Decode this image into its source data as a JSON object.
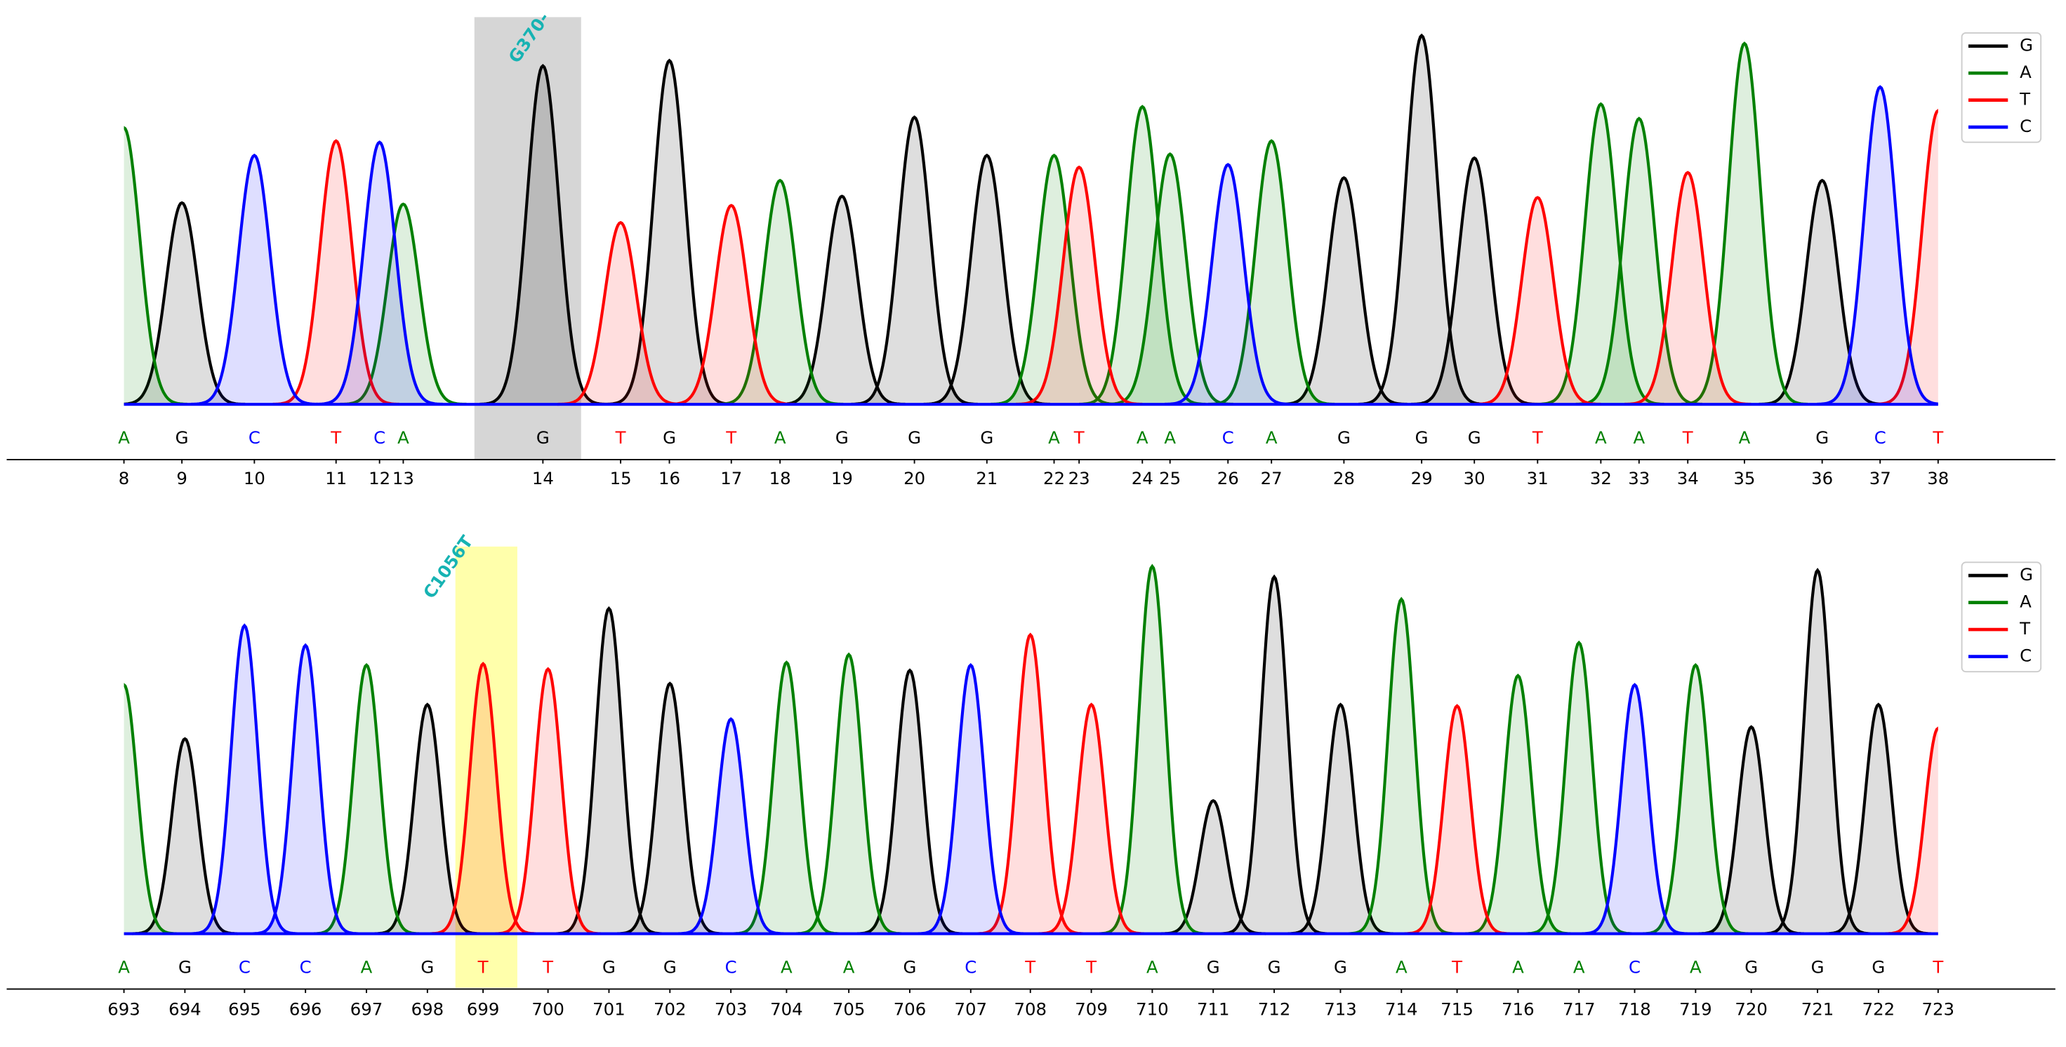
{
  "chart_data": [
    {
      "type": "chromatogram",
      "annotation": "G370-",
      "highlight_position": 14,
      "xlim": [
        94,
        1471
      ],
      "ylim": [
        0,
        300
      ],
      "positions": [
        8,
        9,
        10,
        11,
        12,
        13,
        14,
        15,
        16,
        17,
        18,
        19,
        20,
        21,
        22,
        23,
        24,
        25,
        26,
        27,
        28,
        29,
        30,
        31,
        32,
        33,
        34,
        35,
        36,
        37,
        38
      ],
      "bases": [
        "A",
        "G",
        "C",
        "T",
        "C",
        "A",
        "G",
        "T",
        "G",
        "T",
        "A",
        "G",
        "G",
        "G",
        "A",
        "T",
        "A",
        "A",
        "C",
        "A",
        "G",
        "G",
        "G",
        "T",
        "A",
        "A",
        "T",
        "A",
        "G",
        "C",
        "T"
      ],
      "x": [
        94,
        138,
        193,
        255,
        288,
        306,
        412,
        471,
        508,
        555,
        592,
        639,
        694,
        749,
        800,
        819,
        867,
        888,
        932,
        965,
        1020,
        1079,
        1119,
        1167,
        1215,
        1244,
        1281,
        1324,
        1383,
        1427,
        1471
      ],
      "series": [
        {
          "name": "G",
          "color": "#000000",
          "values": [
            null,
            153,
            null,
            null,
            null,
            null,
            257,
            null,
            261,
            null,
            null,
            158,
            218,
            189,
            null,
            null,
            null,
            null,
            null,
            null,
            172,
            280,
            187,
            null,
            null,
            null,
            null,
            null,
            170,
            null,
            null
          ]
        },
        {
          "name": "A",
          "color": "#008000",
          "values": [
            210,
            null,
            null,
            null,
            null,
            152,
            null,
            null,
            null,
            null,
            170,
            null,
            null,
            null,
            189,
            null,
            226,
            190,
            null,
            200,
            null,
            null,
            null,
            null,
            228,
            217,
            null,
            274,
            null,
            null,
            null
          ]
        },
        {
          "name": "T",
          "color": "#ff0000",
          "values": [
            null,
            null,
            null,
            200,
            null,
            null,
            null,
            138,
            null,
            151,
            null,
            null,
            null,
            null,
            null,
            180,
            null,
            null,
            null,
            null,
            null,
            null,
            null,
            157,
            null,
            null,
            176,
            null,
            null,
            null,
            223
          ]
        },
        {
          "name": "C",
          "color": "#0000ff",
          "values": [
            null,
            null,
            189,
            null,
            199,
            null,
            null,
            null,
            null,
            null,
            null,
            null,
            null,
            null,
            null,
            null,
            null,
            null,
            182,
            null,
            null,
            null,
            null,
            null,
            null,
            null,
            null,
            null,
            null,
            241,
            null
          ]
        }
      ]
    },
    {
      "type": "chromatogram",
      "annotation": "C1056T",
      "highlight_position": 699,
      "xlim": [
        98,
        1467
      ],
      "ylim": [
        0,
        300
      ],
      "positions": [
        693,
        694,
        695,
        696,
        697,
        698,
        699,
        700,
        701,
        702,
        703,
        704,
        705,
        706,
        707,
        708,
        709,
        710,
        711,
        712,
        713,
        714,
        715,
        716,
        717,
        718,
        719,
        720,
        721,
        722,
        723
      ],
      "bases": [
        "A",
        "G",
        "C",
        "C",
        "A",
        "G",
        "T",
        "T",
        "G",
        "G",
        "C",
        "A",
        "A",
        "G",
        "C",
        "T",
        "T",
        "A",
        "G",
        "G",
        "G",
        "A",
        "T",
        "A",
        "A",
        "C",
        "A",
        "G",
        "G",
        "G",
        "T"
      ],
      "x": [
        98,
        144,
        189,
        235,
        281,
        327,
        369,
        418,
        464,
        510,
        556,
        598,
        645,
        691,
        737,
        782,
        828,
        874,
        920,
        966,
        1016,
        1062,
        1104,
        1150,
        1196,
        1238,
        1284,
        1326,
        1376,
        1422,
        1467
      ],
      "series": [
        {
          "name": "G",
          "color": "#000000",
          "values": [
            null,
            148,
            null,
            null,
            null,
            174,
            null,
            null,
            247,
            190,
            null,
            null,
            null,
            200,
            null,
            null,
            null,
            null,
            101,
            271,
            174,
            null,
            null,
            null,
            null,
            null,
            null,
            157,
            276,
            174,
            null
          ]
        },
        {
          "name": "A",
          "color": "#008000",
          "values": [
            189,
            null,
            null,
            null,
            204,
            null,
            null,
            null,
            null,
            null,
            null,
            206,
            212,
            null,
            null,
            null,
            null,
            279,
            null,
            null,
            null,
            254,
            null,
            196,
            221,
            null,
            204,
            null,
            null,
            null,
            null
          ]
        },
        {
          "name": "T",
          "color": "#ff0000",
          "values": [
            null,
            null,
            null,
            null,
            null,
            null,
            205,
            201,
            null,
            null,
            null,
            null,
            null,
            null,
            null,
            227,
            174,
            null,
            null,
            null,
            null,
            null,
            173,
            null,
            null,
            null,
            null,
            null,
            null,
            null,
            156
          ]
        },
        {
          "name": "C",
          "color": "#0000ff",
          "values": [
            null,
            null,
            234,
            219,
            null,
            null,
            null,
            null,
            null,
            null,
            163,
            null,
            null,
            null,
            204,
            null,
            null,
            null,
            null,
            null,
            null,
            null,
            null,
            null,
            null,
            189,
            null,
            null,
            null,
            null,
            null
          ]
        }
      ]
    }
  ]
}
